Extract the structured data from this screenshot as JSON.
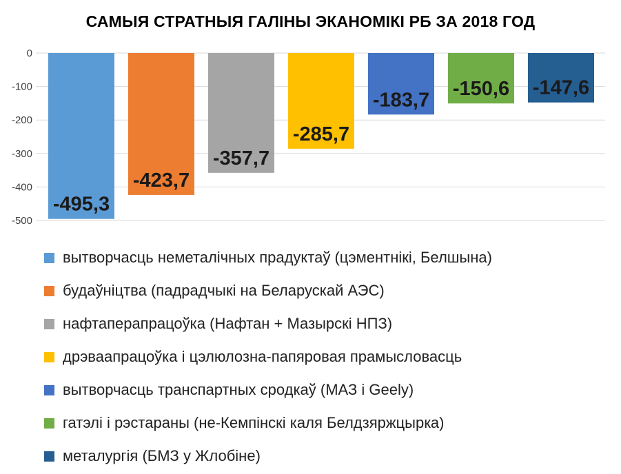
{
  "chart_data": {
    "type": "bar",
    "title": "САМЫЯ СТРАТНЫЯ ГАЛІНЫ ЭКАНОМІКІ РБ ЗА 2018 ГОД",
    "ylim": [
      -500,
      0
    ],
    "yticks": [
      0,
      -100,
      -200,
      -300,
      -400,
      -500
    ],
    "grid": true,
    "legend_position": "bottom",
    "series": [
      {
        "name": "вытворчасць неметалічных прадуктаў (цэментнікі, Белшына)",
        "value": -495.3,
        "label": "-495,3",
        "color": "#5B9BD5"
      },
      {
        "name": "будаўніцтва (падрадчыкі на Беларускай АЭС)",
        "value": -423.7,
        "label": "-423,7",
        "color": "#ED7D31"
      },
      {
        "name": "нафтаперапрацоўка (Нафтан + Мазырскі НПЗ)",
        "value": -357.7,
        "label": "-357,7",
        "color": "#A5A5A5"
      },
      {
        "name": "дрэваапрацоўка і цэлюлозна-папяровая прамысловасць",
        "value": -285.7,
        "label": "-285,7",
        "color": "#FFC000"
      },
      {
        "name": "вытворчасць транспартных сродкаў (МАЗ і Geely)",
        "value": -183.7,
        "label": "-183,7",
        "color": "#4472C4"
      },
      {
        "name": "гатэлі і рэстараны (не-Кемпінскі каля Белдзяржцыркa)",
        "value": -150.6,
        "label": "-150,6",
        "color": "#70AD47"
      },
      {
        "name": "металургія (БМЗ у Жлобіне)",
        "value": -147.6,
        "label": "-147,6",
        "color": "#255E91"
      }
    ]
  }
}
